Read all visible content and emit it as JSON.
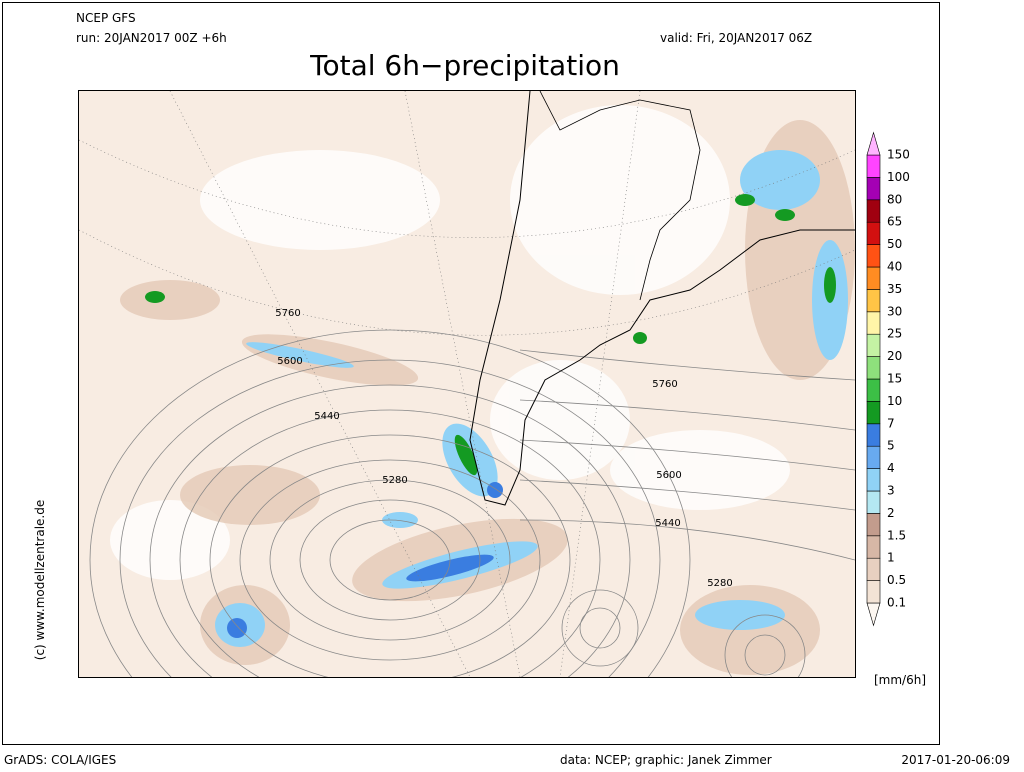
{
  "header": {
    "model": "NCEP GFS",
    "run": "run: 20JAN2017 00Z +6h",
    "valid": "valid: Fri, 20JAN2017 06Z",
    "title": "Total 6h−precipitation"
  },
  "map": {
    "contour_labels": [
      5760,
      5600,
      5440,
      5280,
      5760,
      5600,
      5440,
      5280
    ]
  },
  "legend": {
    "levels": [
      0.1,
      0.5,
      1,
      1.5,
      2,
      3,
      4,
      5,
      7,
      10,
      15,
      20,
      25,
      30,
      35,
      40,
      50,
      65,
      80,
      100,
      150
    ],
    "colors": [
      "#fdf7f1",
      "#f3e3d5",
      "#e8d0c0",
      "#d7b7a6",
      "#c39c8d",
      "#b4e8f2",
      "#90d2f6",
      "#68aaf0",
      "#3a7de0",
      "#149a22",
      "#3cbf46",
      "#8ee07c",
      "#c4f3a4",
      "#fff5a8",
      "#ffc446",
      "#ff8c22",
      "#ff5214",
      "#d21010",
      "#a00010",
      "#a400b4",
      "#ff44ff",
      "#ffb4ff"
    ],
    "unit": "[mm/6h]"
  },
  "footer": {
    "software": "GrADS: COLA/IGES",
    "credits": "data: NCEP; graphic: Janek Zimmer",
    "timestamp": "2017-01-20-06:09",
    "copyright": "(c) www.modellzentrale.de"
  }
}
